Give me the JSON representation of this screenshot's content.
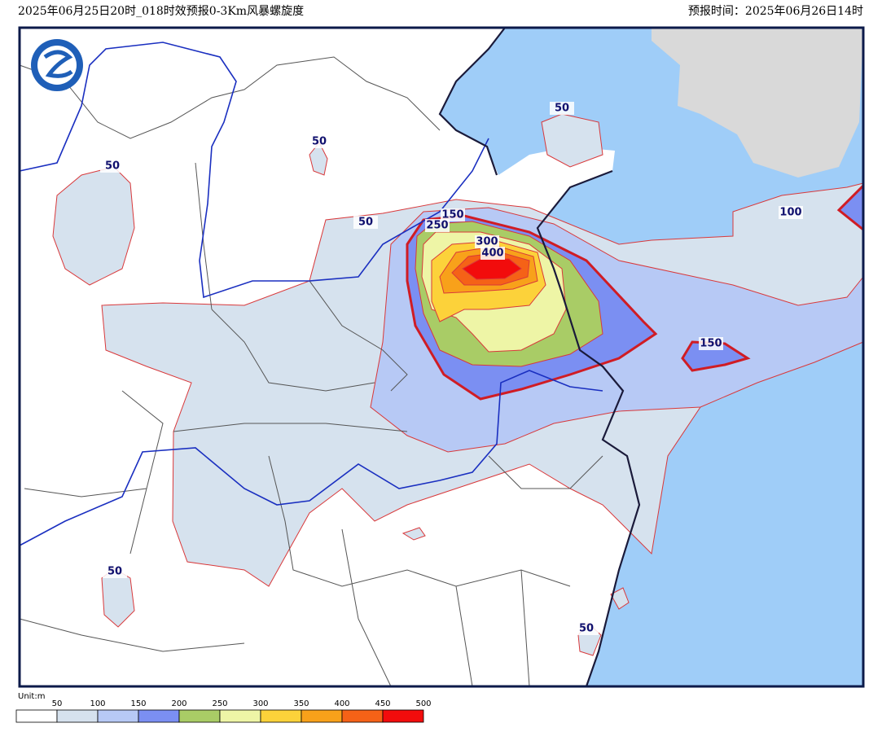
{
  "header": {
    "title": "2025年06月25日20时_018时效预报0-3Km风暴螺旋度",
    "forecast_time": "预报时间：2025年06月26日14时"
  },
  "map": {
    "contour_labels": [
      "50",
      "50",
      "50",
      "50",
      "50",
      "50",
      "100",
      "150",
      "150",
      "250",
      "300",
      "400"
    ]
  },
  "legend": {
    "unit": "Unit:m",
    "ticks": [
      "50",
      "100",
      "150",
      "200",
      "250",
      "300",
      "350",
      "400",
      "450",
      "500"
    ]
  }
}
